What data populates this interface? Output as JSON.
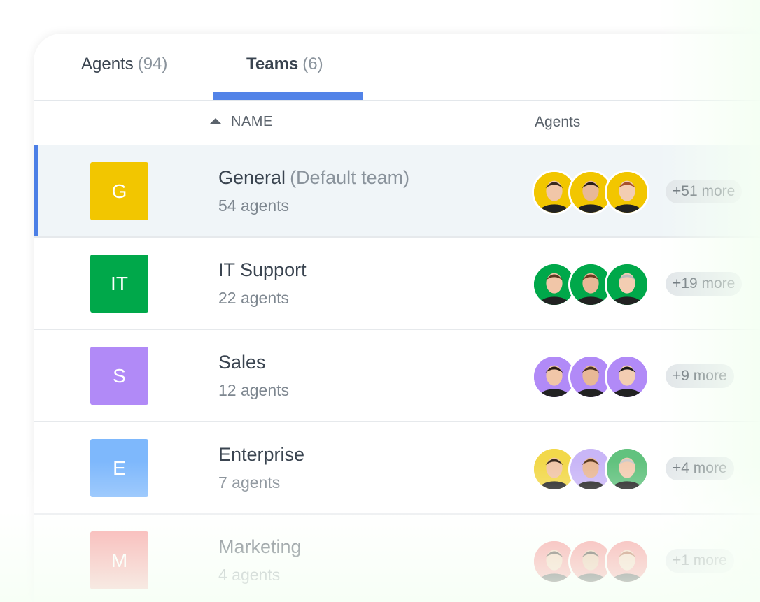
{
  "tabs": [
    {
      "label": "Agents",
      "count": "(94)",
      "active": false
    },
    {
      "label": "Teams",
      "count": "(6)",
      "active": true
    }
  ],
  "columns": {
    "name": "NAME",
    "agents": "Agents"
  },
  "colors": {
    "accent": "#5283e8"
  },
  "teams": [
    {
      "initial": "G",
      "name": "General",
      "note": "(Default team)",
      "count": "54 agents",
      "color": "#f2c600",
      "more": "+51 more",
      "selected": true
    },
    {
      "initial": "IT",
      "name": "IT Support",
      "note": "",
      "count": "22 agents",
      "color": "#00a84a",
      "more": "+19 more",
      "selected": false
    },
    {
      "initial": "S",
      "name": "Sales",
      "note": "",
      "count": "12 agents",
      "color": "#b18af7",
      "more": "+9 more",
      "selected": false
    },
    {
      "initial": "E",
      "name": "Enterprise",
      "note": "",
      "count": "7 agents",
      "color": "#7eb8fc",
      "more": "+4 more",
      "selected": false
    },
    {
      "initial": "M",
      "name": "Marketing",
      "note": "",
      "count": "4 agents",
      "color": "#f78a8a",
      "more": "+1 more",
      "selected": false
    }
  ]
}
